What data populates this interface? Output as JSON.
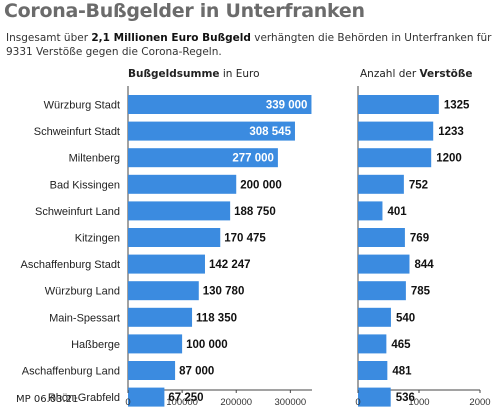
{
  "title": "Corona-Bußgelder in Unterfranken",
  "subtitle": {
    "part1": "Insgesamt über ",
    "bold1": "2,1 Millionen Euro Bußgeld",
    "part2": " verhängten die Behörden in Unterfranken für 9331 Verstöße gegen die Corona-Regeln."
  },
  "credit": "MP 06.03.21",
  "colors": {
    "bar": "#3b8be0",
    "axis": "#444444",
    "label": "#222222"
  },
  "chart_data": [
    {
      "type": "bar",
      "orientation": "horizontal",
      "title_bold": "Bußgeldsumme",
      "title_rest": " in Euro",
      "categories": [
        "Würzburg Stadt",
        "Schweinfurt Stadt",
        "Miltenberg",
        "Bad Kissingen",
        "Schweinfurt Land",
        "Kitzingen",
        "Aschaffenburg Stadt",
        "Würzburg Land",
        "Main-Spessart",
        "Haßberge",
        "Aschaffenburg Land",
        "Rhön-Grabfeld"
      ],
      "values": [
        339000,
        308545,
        277000,
        200000,
        188750,
        170475,
        142247,
        130780,
        118350,
        100000,
        87000,
        67250
      ],
      "value_labels": [
        "339 000",
        "308 545",
        "277 000",
        "200 000",
        "188 750",
        "170 475",
        "142 247",
        "130 780",
        "118 350",
        "100 000",
        "87 000",
        "67 250"
      ],
      "xlim": [
        0,
        340000
      ],
      "ticks": [
        0,
        100000,
        200000,
        300000
      ],
      "tick_labels": [
        "0",
        "100000",
        "200000",
        "300000"
      ],
      "grid": false
    },
    {
      "type": "bar",
      "orientation": "horizontal",
      "title_rest": "Anzahl der ",
      "title_bold": "Verstöße",
      "categories": [
        "Würzburg Stadt",
        "Schweinfurt Stadt",
        "Miltenberg",
        "Bad Kissingen",
        "Schweinfurt Land",
        "Kitzingen",
        "Aschaffenburg Stadt",
        "Würzburg Land",
        "Main-Spessart",
        "Haßberge",
        "Aschaffenburg Land",
        "Rhön-Grabfeld"
      ],
      "values": [
        1325,
        1233,
        1200,
        752,
        401,
        769,
        844,
        785,
        540,
        465,
        481,
        536
      ],
      "value_labels": [
        "1325",
        "1233",
        "1200",
        "752",
        "401",
        "769",
        "844",
        "785",
        "540",
        "465",
        "481",
        "536"
      ],
      "xlim": [
        0,
        2000
      ],
      "ticks": [
        0,
        1000,
        2000
      ],
      "tick_labels": [
        "0",
        "1000",
        "2000"
      ],
      "grid": false
    }
  ]
}
